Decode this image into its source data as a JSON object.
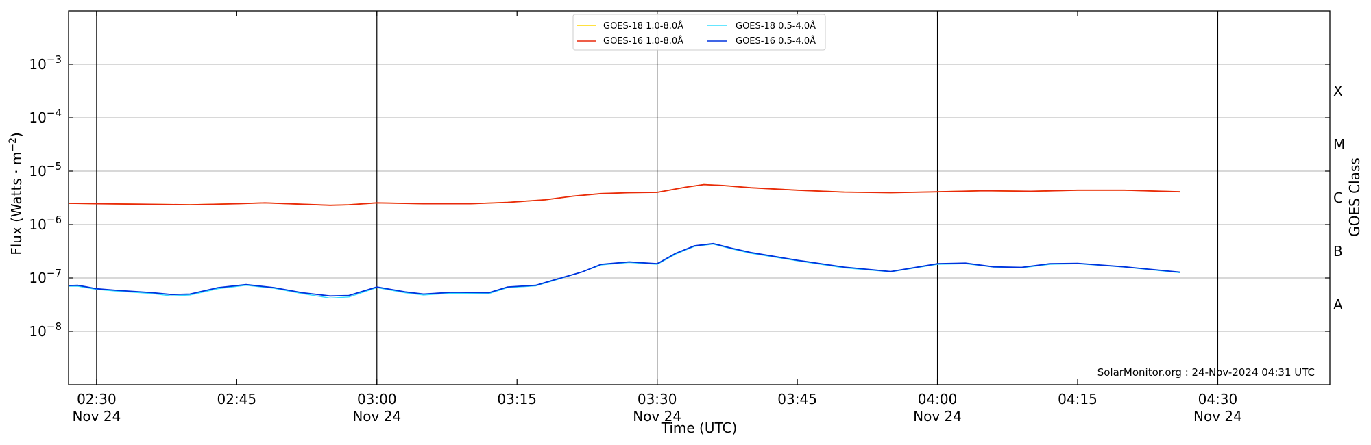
{
  "chart_data": {
    "type": "line",
    "xlabel": "Time (UTC)",
    "ylabel_main": "Flux (Watts · m",
    "ylabel_sup": "−2",
    "ylabel_close": ")",
    "y2label": "GOES Class",
    "yscale": "log",
    "xlim": [
      "02:27",
      "04:42"
    ],
    "ylim": [
      1e-09,
      0.01
    ],
    "grid": "horizontal",
    "legend_position": "top-center",
    "x_ticks": [
      {
        "time": "02:30",
        "label": "02:30",
        "sublabel": "Nov 24",
        "vline": true
      },
      {
        "time": "02:45",
        "label": "02:45",
        "sublabel": "",
        "vline": false
      },
      {
        "time": "03:00",
        "label": "03:00",
        "sublabel": "Nov 24",
        "vline": true
      },
      {
        "time": "03:15",
        "label": "03:15",
        "sublabel": "",
        "vline": false
      },
      {
        "time": "03:30",
        "label": "03:30",
        "sublabel": "Nov 24",
        "vline": true
      },
      {
        "time": "03:45",
        "label": "03:45",
        "sublabel": "",
        "vline": false
      },
      {
        "time": "04:00",
        "label": "04:00",
        "sublabel": "Nov 24",
        "vline": true
      },
      {
        "time": "04:15",
        "label": "04:15",
        "sublabel": "",
        "vline": false
      },
      {
        "time": "04:30",
        "label": "04:30",
        "sublabel": "Nov 24",
        "vline": true
      }
    ],
    "y_ticks": [
      {
        "exp": -8,
        "label": "10",
        "sup": "−8"
      },
      {
        "exp": -7,
        "label": "10",
        "sup": "−7"
      },
      {
        "exp": -6,
        "label": "10",
        "sup": "−6"
      },
      {
        "exp": -5,
        "label": "10",
        "sup": "−5"
      },
      {
        "exp": -4,
        "label": "10",
        "sup": "−4"
      },
      {
        "exp": -3,
        "label": "10",
        "sup": "−3"
      }
    ],
    "goes_classes": [
      {
        "label": "A",
        "exp": -7.5
      },
      {
        "label": "B",
        "exp": -6.5
      },
      {
        "label": "C",
        "exp": -5.5
      },
      {
        "label": "M",
        "exp": -4.5
      },
      {
        "label": "X",
        "exp": -3.5
      }
    ],
    "credit": "SolarMonitor.org : 24-Nov-2024 04:31 UTC",
    "series": [
      {
        "name": "GOES-18 1.0-8.0Å",
        "color": "#ffd700",
        "x": [
          "02:27",
          "02:30",
          "02:35",
          "02:40",
          "02:45",
          "02:48",
          "02:55",
          "02:57",
          "03:00",
          "03:05",
          "03:10",
          "03:14",
          "03:18",
          "03:21",
          "03:24",
          "03:27",
          "03:30",
          "03:33",
          "03:35",
          "03:37",
          "03:40",
          "03:45",
          "03:50",
          "03:55",
          "04:00",
          "04:05",
          "04:10",
          "04:15",
          "04:20",
          "04:26"
        ],
        "y": [
          2.5e-06,
          2.45e-06,
          2.4e-06,
          2.35e-06,
          2.45e-06,
          2.55e-06,
          2.3e-06,
          2.35e-06,
          2.55e-06,
          2.45e-06,
          2.45e-06,
          2.6e-06,
          2.9e-06,
          3.4e-06,
          3.8e-06,
          3.95e-06,
          4e-06,
          5e-06,
          5.6e-06,
          5.4e-06,
          4.9e-06,
          4.4e-06,
          4.05e-06,
          3.95e-06,
          4.1e-06,
          4.3e-06,
          4.2e-06,
          4.4e-06,
          4.4e-06,
          4.1e-06
        ]
      },
      {
        "name": "GOES-16 1.0-8.0Å",
        "color": "#e8290b",
        "x": [
          "02:27",
          "02:30",
          "02:35",
          "02:40",
          "02:45",
          "02:48",
          "02:55",
          "02:57",
          "03:00",
          "03:05",
          "03:10",
          "03:14",
          "03:18",
          "03:21",
          "03:24",
          "03:27",
          "03:30",
          "03:33",
          "03:35",
          "03:37",
          "03:40",
          "03:45",
          "03:50",
          "03:55",
          "04:00",
          "04:05",
          "04:10",
          "04:15",
          "04:20",
          "04:26"
        ],
        "y": [
          2.5e-06,
          2.45e-06,
          2.4e-06,
          2.35e-06,
          2.45e-06,
          2.55e-06,
          2.3e-06,
          2.35e-06,
          2.55e-06,
          2.45e-06,
          2.45e-06,
          2.6e-06,
          2.9e-06,
          3.4e-06,
          3.8e-06,
          3.95e-06,
          4e-06,
          5e-06,
          5.6e-06,
          5.4e-06,
          4.9e-06,
          4.4e-06,
          4.05e-06,
          3.95e-06,
          4.1e-06,
          4.3e-06,
          4.2e-06,
          4.4e-06,
          4.4e-06,
          4.1e-06
        ]
      },
      {
        "name": "GOES-18 0.5-4.0Å",
        "color": "#33ddff",
        "x": [
          "02:27",
          "02:28",
          "02:30",
          "02:32",
          "02:36",
          "02:38",
          "02:40",
          "02:43",
          "02:46",
          "02:49",
          "02:52",
          "02:55",
          "02:57",
          "03:00",
          "03:03",
          "03:05",
          "03:08",
          "03:12",
          "03:14",
          "03:17",
          "03:19",
          "03:22",
          "03:24",
          "03:27",
          "03:30",
          "03:32",
          "03:34",
          "03:36",
          "03:38",
          "03:40",
          "03:45",
          "03:50",
          "03:55",
          "04:00",
          "04:03",
          "04:06",
          "04:09",
          "04:12",
          "04:15",
          "04:20",
          "04:26"
        ],
        "y": [
          7e-08,
          7e-08,
          6.1e-08,
          5.7e-08,
          5.1e-08,
          4.6e-08,
          4.8e-08,
          6.3e-08,
          7.3e-08,
          6.4e-08,
          5.1e-08,
          4.2e-08,
          4.4e-08,
          6.6e-08,
          5.3e-08,
          4.8e-08,
          5.2e-08,
          5.1e-08,
          6.6e-08,
          7.1e-08,
          9e-08,
          1.3e-07,
          1.75e-07,
          1.95e-07,
          1.8e-07,
          2.8e-07,
          3.9e-07,
          4.3e-07,
          3.5e-07,
          2.9e-07,
          2.1e-07,
          1.55e-07,
          1.3e-07,
          1.8e-07,
          1.85e-07,
          1.6e-07,
          1.55e-07,
          1.8e-07,
          1.85e-07,
          1.6e-07,
          1.25e-07
        ]
      },
      {
        "name": "GOES-16 0.5-4.0Å",
        "color": "#0033dd",
        "x": [
          "02:27",
          "02:28",
          "02:30",
          "02:32",
          "02:36",
          "02:38",
          "02:40",
          "02:43",
          "02:46",
          "02:49",
          "02:52",
          "02:55",
          "02:57",
          "03:00",
          "03:03",
          "03:05",
          "03:08",
          "03:12",
          "03:14",
          "03:17",
          "03:19",
          "03:22",
          "03:24",
          "03:27",
          "03:30",
          "03:32",
          "03:34",
          "03:36",
          "03:38",
          "03:40",
          "03:45",
          "03:50",
          "03:55",
          "04:00",
          "04:03",
          "04:06",
          "04:09",
          "04:12",
          "04:15",
          "04:20",
          "04:26"
        ],
        "y": [
          7.2e-08,
          7.3e-08,
          6.3e-08,
          5.9e-08,
          5.3e-08,
          4.9e-08,
          5e-08,
          6.6e-08,
          7.5e-08,
          6.6e-08,
          5.3e-08,
          4.6e-08,
          4.7e-08,
          6.8e-08,
          5.5e-08,
          5e-08,
          5.4e-08,
          5.3e-08,
          6.8e-08,
          7.3e-08,
          9.2e-08,
          1.3e-07,
          1.8e-07,
          2e-07,
          1.85e-07,
          2.9e-07,
          4e-07,
          4.4e-07,
          3.6e-07,
          3e-07,
          2.15e-07,
          1.6e-07,
          1.32e-07,
          1.85e-07,
          1.9e-07,
          1.62e-07,
          1.58e-07,
          1.85e-07,
          1.88e-07,
          1.62e-07,
          1.28e-07
        ]
      }
    ]
  }
}
